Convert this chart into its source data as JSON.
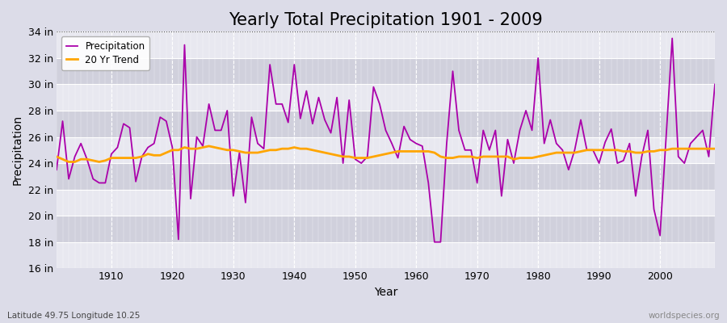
{
  "title": "Yearly Total Precipitation 1901 - 2009",
  "xlabel": "Year",
  "ylabel": "Precipitation",
  "subtitle": "Latitude 49.75 Longitude 10.25",
  "watermark": "worldspecies.org",
  "years": [
    1901,
    1902,
    1903,
    1904,
    1905,
    1906,
    1907,
    1908,
    1909,
    1910,
    1911,
    1912,
    1913,
    1914,
    1915,
    1916,
    1917,
    1918,
    1919,
    1920,
    1921,
    1922,
    1923,
    1924,
    1925,
    1926,
    1927,
    1928,
    1929,
    1930,
    1931,
    1932,
    1933,
    1934,
    1935,
    1936,
    1937,
    1938,
    1939,
    1940,
    1941,
    1942,
    1943,
    1944,
    1945,
    1946,
    1947,
    1948,
    1949,
    1950,
    1951,
    1952,
    1953,
    1954,
    1955,
    1956,
    1957,
    1958,
    1959,
    1960,
    1961,
    1962,
    1963,
    1964,
    1965,
    1966,
    1967,
    1968,
    1969,
    1970,
    1971,
    1972,
    1973,
    1974,
    1975,
    1976,
    1977,
    1978,
    1979,
    1980,
    1981,
    1982,
    1983,
    1984,
    1985,
    1986,
    1987,
    1988,
    1989,
    1990,
    1991,
    1992,
    1993,
    1994,
    1995,
    1996,
    1997,
    1998,
    1999,
    2000,
    2001,
    2002,
    2003,
    2004,
    2005,
    2006,
    2007,
    2008,
    2009
  ],
  "precip_in": [
    23.5,
    27.2,
    22.8,
    24.5,
    25.5,
    24.3,
    22.8,
    22.5,
    22.5,
    24.7,
    25.2,
    27.0,
    26.7,
    22.6,
    24.5,
    25.2,
    25.5,
    27.5,
    27.2,
    25.2,
    18.2,
    33.0,
    21.3,
    26.0,
    25.3,
    28.5,
    26.5,
    26.5,
    28.0,
    21.5,
    24.8,
    21.0,
    27.5,
    25.5,
    25.1,
    31.5,
    28.5,
    28.5,
    27.1,
    31.5,
    27.4,
    29.5,
    27.0,
    29.0,
    27.3,
    26.3,
    29.0,
    24.0,
    28.8,
    24.3,
    24.0,
    24.5,
    29.8,
    28.5,
    26.5,
    25.5,
    24.4,
    26.8,
    25.8,
    25.5,
    25.3,
    22.5,
    18.0,
    18.0,
    25.5,
    31.0,
    26.5,
    25.0,
    25.0,
    22.5,
    26.5,
    25.0,
    26.5,
    21.5,
    25.8,
    24.0,
    26.5,
    28.0,
    26.5,
    32.0,
    25.5,
    27.3,
    25.5,
    25.0,
    23.5,
    25.0,
    27.3,
    25.0,
    25.0,
    24.0,
    25.6,
    26.6,
    24.0,
    24.2,
    25.5,
    21.5,
    24.5,
    26.5,
    20.5,
    18.5,
    26.0,
    33.5,
    24.5,
    24.0,
    25.5,
    26.0,
    26.5,
    24.5,
    30.0
  ],
  "trend_in": [
    24.5,
    24.3,
    24.1,
    24.1,
    24.3,
    24.3,
    24.2,
    24.1,
    24.2,
    24.4,
    24.4,
    24.4,
    24.4,
    24.4,
    24.5,
    24.7,
    24.6,
    24.6,
    24.8,
    25.0,
    25.0,
    25.2,
    25.1,
    25.1,
    25.2,
    25.3,
    25.2,
    25.1,
    25.0,
    25.0,
    24.9,
    24.8,
    24.8,
    24.8,
    24.9,
    25.0,
    25.0,
    25.1,
    25.1,
    25.2,
    25.1,
    25.1,
    25.0,
    24.9,
    24.8,
    24.7,
    24.6,
    24.5,
    24.5,
    24.4,
    24.4,
    24.4,
    24.5,
    24.6,
    24.7,
    24.8,
    24.9,
    24.9,
    24.9,
    24.9,
    24.9,
    24.9,
    24.8,
    24.5,
    24.4,
    24.4,
    24.5,
    24.5,
    24.5,
    24.4,
    24.5,
    24.5,
    24.5,
    24.5,
    24.5,
    24.3,
    24.4,
    24.4,
    24.4,
    24.5,
    24.6,
    24.7,
    24.8,
    24.8,
    24.8,
    24.8,
    24.9,
    25.0,
    25.0,
    25.0,
    25.0,
    25.0,
    25.0,
    24.9,
    24.9,
    24.8,
    24.8,
    24.9,
    24.9,
    25.0,
    25.0,
    25.1,
    25.1,
    25.1,
    25.1,
    25.1,
    25.1,
    25.1,
    25.1
  ],
  "precip_color": "#aa00aa",
  "trend_color": "#FFA500",
  "bg_color": "#dcdce8",
  "plot_bg_color": "#dcdce8",
  "stripe_color_light": "#e8e8f0",
  "stripe_color_dark": "#d0d0dc",
  "grid_color": "#ffffff",
  "ylim": [
    16,
    34
  ],
  "ytick_labels": [
    "16 in",
    "18 in",
    "20 in",
    "22 in",
    "24 in",
    "26 in",
    "28 in",
    "30 in",
    "32 in",
    "34 in"
  ],
  "ytick_values": [
    16,
    18,
    20,
    22,
    24,
    26,
    28,
    30,
    32,
    34
  ],
  "xtick_values": [
    1910,
    1920,
    1930,
    1940,
    1950,
    1960,
    1970,
    1980,
    1990,
    2000
  ],
  "title_fontsize": 15,
  "axis_fontsize": 9,
  "label_fontsize": 10
}
